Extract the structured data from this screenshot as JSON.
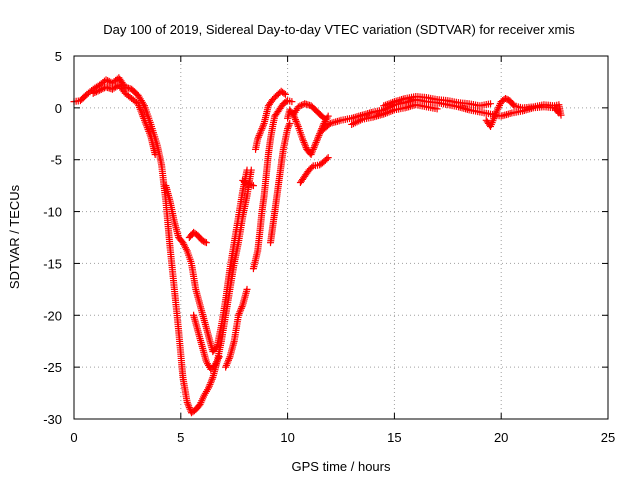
{
  "chart_data": {
    "type": "scatter",
    "title": "Day 100 of 2019, Sidereal Day-to-day VTEC variation (SDTVAR) for receiver xmis",
    "xlabel": "GPS time / hours",
    "ylabel": "SDTVAR / TECUs",
    "xlim": [
      0,
      25
    ],
    "ylim": [
      -30,
      5
    ],
    "xticks": [
      0,
      5,
      10,
      15,
      20,
      25
    ],
    "yticks": [
      5,
      0,
      -5,
      -10,
      -15,
      -20,
      -25,
      -30
    ],
    "grid": true,
    "marker": "plus",
    "color": "#ff0000",
    "series": [
      {
        "name": "SDTVAR",
        "tracks": [
          [
            [
              0.0,
              0.6
            ],
            [
              0.3,
              0.7
            ],
            [
              0.6,
              1.3
            ],
            [
              0.9,
              1.8
            ],
            [
              1.2,
              2.2
            ],
            [
              1.5,
              2.7
            ],
            [
              1.8,
              2.4
            ],
            [
              2.1,
              2.9
            ],
            [
              2.4,
              2.0
            ],
            [
              2.7,
              1.8
            ],
            [
              3.0,
              1.2
            ],
            [
              3.3,
              0.2
            ],
            [
              3.6,
              -1.6
            ],
            [
              3.9,
              -3.6
            ],
            [
              4.1,
              -5.5
            ],
            [
              4.3,
              -9.0
            ],
            [
              4.5,
              -13.5
            ],
            [
              4.7,
              -17.5
            ],
            [
              4.9,
              -21.5
            ],
            [
              5.1,
              -26.0
            ],
            [
              5.3,
              -28.4
            ],
            [
              5.5,
              -29.4
            ],
            [
              5.7,
              -29.1
            ],
            [
              5.9,
              -28.6
            ],
            [
              6.1,
              -27.7
            ],
            [
              6.3,
              -27.0
            ],
            [
              6.5,
              -26.0
            ],
            [
              6.7,
              -24.5
            ],
            [
              6.9,
              -22.5
            ],
            [
              7.1,
              -20.0
            ],
            [
              7.3,
              -17.5
            ],
            [
              7.5,
              -15.0
            ],
            [
              7.7,
              -13.0
            ],
            [
              7.9,
              -10.5
            ],
            [
              8.1,
              -8.5
            ],
            [
              8.3,
              -6.0
            ]
          ],
          [
            [
              0.9,
              1.4
            ],
            [
              1.2,
              1.7
            ],
            [
              1.5,
              2.0
            ],
            [
              1.8,
              1.8
            ],
            [
              2.1,
              2.2
            ],
            [
              2.4,
              1.4
            ],
            [
              2.7,
              0.9
            ],
            [
              3.0,
              0.4
            ],
            [
              3.3,
              -1.2
            ],
            [
              3.6,
              -2.8
            ],
            [
              3.8,
              -4.5
            ]
          ],
          [
            [
              4.3,
              -7.5
            ],
            [
              4.5,
              -9.0
            ],
            [
              4.7,
              -11.0
            ],
            [
              4.9,
              -12.5
            ],
            [
              5.1,
              -13.0
            ],
            [
              5.3,
              -13.8
            ],
            [
              5.5,
              -15.0
            ],
            [
              5.7,
              -17.5
            ],
            [
              5.9,
              -19.0
            ],
            [
              6.1,
              -20.5
            ],
            [
              6.3,
              -22.0
            ],
            [
              6.5,
              -23.5
            ],
            [
              6.7,
              -23.0
            ],
            [
              6.9,
              -21.0
            ],
            [
              7.1,
              -18.5
            ],
            [
              7.3,
              -15.5
            ],
            [
              7.5,
              -13.0
            ],
            [
              7.7,
              -10.5
            ],
            [
              7.9,
              -8.0
            ],
            [
              8.1,
              -6.0
            ]
          ],
          [
            [
              5.4,
              -12.5
            ],
            [
              5.6,
              -12.0
            ],
            [
              5.8,
              -12.3
            ],
            [
              6.0,
              -12.8
            ],
            [
              6.2,
              -13.0
            ]
          ],
          [
            [
              5.6,
              -20.0
            ],
            [
              5.8,
              -21.5
            ],
            [
              6.0,
              -23.0
            ],
            [
              6.2,
              -24.5
            ],
            [
              6.4,
              -25.2
            ],
            [
              6.6,
              -24.8
            ],
            [
              6.8,
              -24.0
            ]
          ],
          [
            [
              7.1,
              -25.0
            ],
            [
              7.3,
              -24.0
            ],
            [
              7.5,
              -22.5
            ],
            [
              7.7,
              -20.0
            ],
            [
              7.9,
              -19.0
            ],
            [
              8.1,
              -17.5
            ]
          ],
          [
            [
              7.9,
              -7.0
            ],
            [
              8.1,
              -7.3
            ],
            [
              8.4,
              -7.5
            ]
          ],
          [
            [
              8.4,
              -15.5
            ],
            [
              8.6,
              -13.8
            ],
            [
              8.7,
              -12.0
            ],
            [
              8.8,
              -10.0
            ],
            [
              8.9,
              -8.5
            ],
            [
              9.0,
              -6.5
            ],
            [
              9.1,
              -4.5
            ],
            [
              9.2,
              -3.0
            ],
            [
              9.3,
              -1.8
            ],
            [
              9.4,
              -0.8
            ],
            [
              9.6,
              -0.2
            ],
            [
              9.8,
              0.4
            ],
            [
              10.0,
              0.7
            ],
            [
              10.2,
              0.6
            ]
          ],
          [
            [
              8.5,
              -4.0
            ],
            [
              8.6,
              -3.0
            ],
            [
              8.7,
              -2.5
            ],
            [
              8.9,
              -1.5
            ],
            [
              9.1,
              0.2
            ],
            [
              9.3,
              0.8
            ],
            [
              9.5,
              1.2
            ],
            [
              9.7,
              1.6
            ],
            [
              9.9,
              1.3
            ]
          ],
          [
            [
              9.2,
              -13.0
            ],
            [
              9.3,
              -11.5
            ],
            [
              9.4,
              -10.0
            ],
            [
              9.5,
              -8.5
            ],
            [
              9.6,
              -7.0
            ],
            [
              9.7,
              -5.5
            ],
            [
              9.8,
              -4.0
            ],
            [
              9.9,
              -3.0
            ],
            [
              10.0,
              -2.0
            ],
            [
              10.1,
              -1.5
            ]
          ],
          [
            [
              10.0,
              -1.0
            ],
            [
              10.1,
              -0.2
            ],
            [
              10.3,
              -0.8
            ],
            [
              10.5,
              -1.8
            ],
            [
              10.7,
              -3.0
            ],
            [
              10.9,
              -4.0
            ],
            [
              11.1,
              -4.5
            ],
            [
              11.3,
              -3.5
            ],
            [
              11.5,
              -2.5
            ],
            [
              11.7,
              -1.5
            ],
            [
              11.9,
              -0.8
            ]
          ],
          [
            [
              10.3,
              -0.6
            ],
            [
              10.5,
              0.1
            ],
            [
              10.8,
              0.4
            ],
            [
              11.1,
              0.2
            ],
            [
              11.4,
              -0.4
            ],
            [
              11.7,
              -1.0
            ]
          ],
          [
            [
              10.6,
              -7.2
            ],
            [
              10.8,
              -6.6
            ],
            [
              11.0,
              -6.0
            ],
            [
              11.2,
              -5.6
            ],
            [
              11.5,
              -5.5
            ],
            [
              11.7,
              -5.2
            ],
            [
              11.9,
              -4.8
            ]
          ],
          [
            [
              11.6,
              -2.2
            ],
            [
              12.0,
              -1.5
            ],
            [
              12.5,
              -1.2
            ],
            [
              13.0,
              -1.0
            ],
            [
              13.5,
              -0.7
            ],
            [
              14.0,
              -0.4
            ],
            [
              14.5,
              -0.2
            ],
            [
              15.0,
              0.3
            ],
            [
              15.5,
              0.5
            ],
            [
              16.0,
              0.8
            ],
            [
              16.5,
              0.6
            ],
            [
              17.0,
              0.5
            ],
            [
              17.5,
              0.3
            ],
            [
              18.0,
              0.1
            ],
            [
              18.5,
              -0.2
            ],
            [
              19.0,
              -0.4
            ],
            [
              19.5,
              -0.6
            ],
            [
              20.0,
              -0.8
            ],
            [
              20.5,
              -0.5
            ],
            [
              21.0,
              -0.3
            ],
            [
              21.5,
              0.0
            ],
            [
              22.0,
              0.1
            ],
            [
              22.5,
              0.0
            ],
            [
              22.7,
              -0.5
            ]
          ],
          [
            [
              13.0,
              -1.6
            ],
            [
              13.5,
              -1.1
            ],
            [
              14.0,
              -0.9
            ],
            [
              14.5,
              -0.6
            ],
            [
              15.0,
              -0.2
            ],
            [
              15.5,
              0.0
            ],
            [
              16.0,
              0.3
            ],
            [
              16.5,
              0.1
            ],
            [
              17.0,
              -0.1
            ]
          ],
          [
            [
              14.5,
              0.2
            ],
            [
              15.0,
              0.6
            ],
            [
              15.5,
              0.9
            ],
            [
              16.0,
              1.1
            ],
            [
              16.5,
              1.0
            ],
            [
              17.0,
              0.8
            ],
            [
              17.5,
              0.7
            ],
            [
              18.0,
              0.5
            ],
            [
              18.5,
              0.4
            ],
            [
              19.0,
              0.2
            ],
            [
              19.5,
              0.4
            ]
          ],
          [
            [
              19.3,
              -1.2
            ],
            [
              19.5,
              -1.8
            ],
            [
              19.8,
              -0.3
            ],
            [
              20.0,
              0.6
            ],
            [
              20.2,
              0.9
            ],
            [
              20.4,
              0.7
            ],
            [
              20.6,
              0.2
            ],
            [
              21.0,
              0.0
            ],
            [
              21.5,
              0.1
            ],
            [
              22.0,
              0.3
            ],
            [
              22.5,
              0.2
            ],
            [
              22.7,
              0.3
            ],
            [
              22.8,
              -0.7
            ]
          ]
        ]
      }
    ]
  }
}
